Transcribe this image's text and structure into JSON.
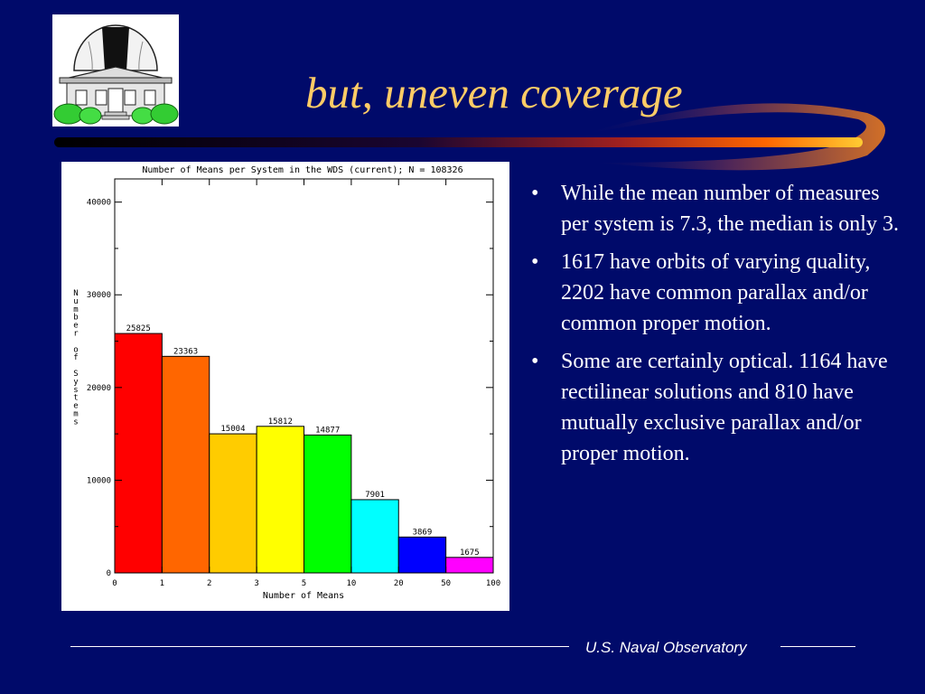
{
  "slide": {
    "title": "but, uneven coverage",
    "footer": "U.S. Naval Observatory"
  },
  "logo": {
    "name": "observatory-dome-icon"
  },
  "bullets": [
    "While the mean number of measures per system is 7.3, the median is only 3.",
    "1617 have orbits of varying quality, 2202 have common parallax and/or common proper motion.",
    "Some are certainly optical. 1164 have rectilinear solutions and 810 have mutually exclusive parallax and/or proper motion."
  ],
  "chart_data": {
    "type": "bar",
    "title": "Number of Means per System in the WDS (current); N = 108326",
    "xlabel": "Number of Means",
    "ylabel": "Number of Systems",
    "x_ticks": [
      "0",
      "1",
      "2",
      "3",
      "5",
      "10",
      "20",
      "50",
      "100"
    ],
    "y_ticks": [
      "0",
      "10000",
      "20000",
      "30000",
      "40000"
    ],
    "ylim": [
      0,
      42500
    ],
    "bins": [
      {
        "from": "0",
        "to": "1",
        "value": 25825,
        "color": "#ff0000"
      },
      {
        "from": "1",
        "to": "2",
        "value": 23363,
        "color": "#ff6600"
      },
      {
        "from": "2",
        "to": "3",
        "value": 15004,
        "color": "#ffcc00"
      },
      {
        "from": "3",
        "to": "5",
        "value": 15812,
        "color": "#ffff00"
      },
      {
        "from": "5",
        "to": "10",
        "value": 14877,
        "color": "#00ff00"
      },
      {
        "from": "10",
        "to": "20",
        "value": 7901,
        "color": "#00ffff"
      },
      {
        "from": "20",
        "to": "50",
        "value": 3869,
        "color": "#0000ff"
      },
      {
        "from": "50",
        "to": "100",
        "value": 1675,
        "color": "#ff00ff"
      }
    ]
  }
}
